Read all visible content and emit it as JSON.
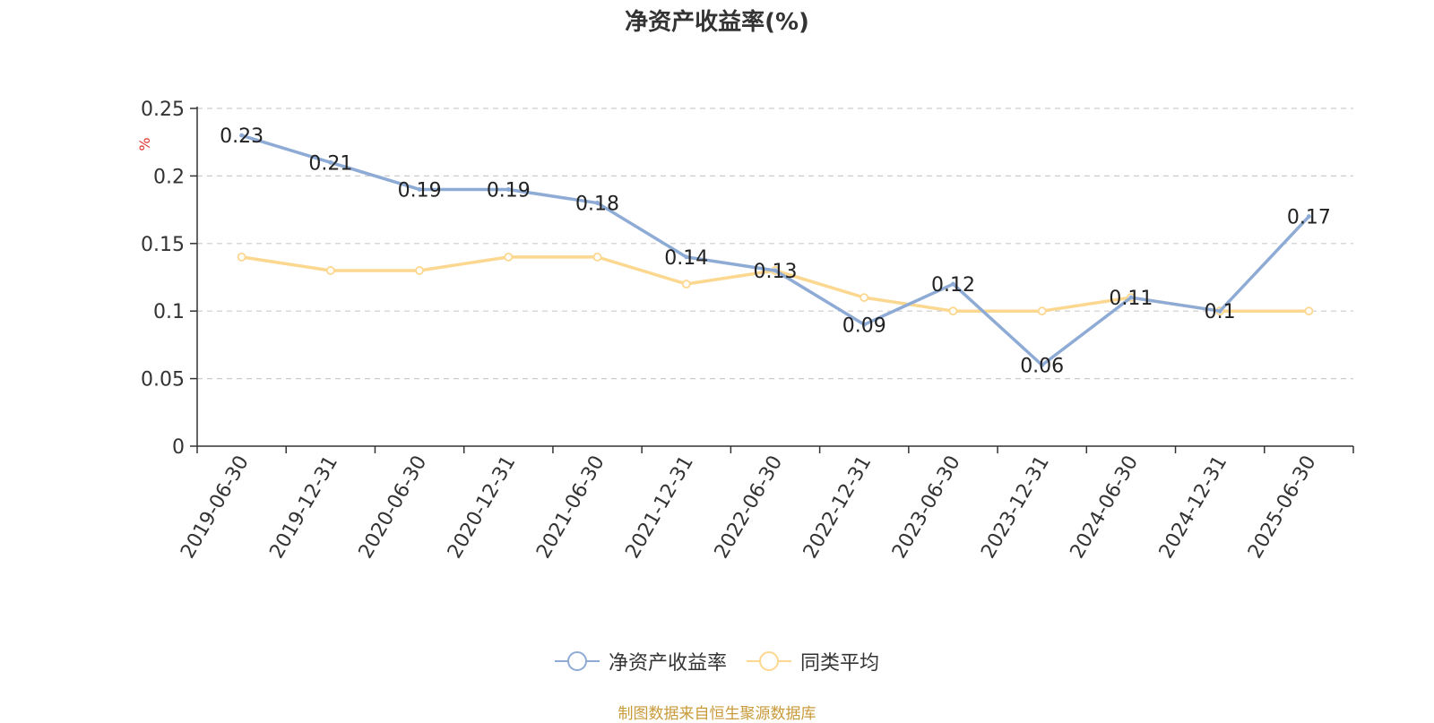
{
  "chart_data": {
    "type": "line",
    "title": "净资产收益率(%)",
    "ylabel": "%",
    "xlabel": "",
    "categories": [
      "2019-06-30",
      "2019-12-31",
      "2020-06-30",
      "2020-12-31",
      "2021-06-30",
      "2021-12-31",
      "2022-06-30",
      "2022-12-31",
      "2023-06-30",
      "2023-12-31",
      "2024-06-30",
      "2024-12-31",
      "2025-06-30"
    ],
    "series": [
      {
        "name": "净资产收益率",
        "color": "#8eabd6",
        "values": [
          0.23,
          0.21,
          0.19,
          0.19,
          0.18,
          0.14,
          0.13,
          0.09,
          0.12,
          0.06,
          0.11,
          0.1,
          0.17
        ],
        "labels": [
          "0.23",
          "0.21",
          "0.19",
          "0.19",
          "0.18",
          "0.14",
          "0.13",
          "0.09",
          "0.12",
          "0.06",
          "0.11",
          "0.1",
          "0.17"
        ]
      },
      {
        "name": "同类平均",
        "color": "#fcd78f",
        "values": [
          0.14,
          0.13,
          0.13,
          0.14,
          0.14,
          0.12,
          0.13,
          0.11,
          0.1,
          0.1,
          0.11,
          0.1,
          0.1
        ]
      }
    ],
    "ylim": [
      0,
      0.25
    ],
    "yticks": [
      0,
      0.05,
      0.1,
      0.15,
      0.2,
      0.25
    ],
    "ytick_labels": [
      "0",
      "0.05",
      "0.1",
      "0.15",
      "0.2",
      "0.25"
    ],
    "grid": true,
    "legend_position": "bottom"
  },
  "footer": {
    "source": "制图数据来自恒生聚源数据库"
  }
}
